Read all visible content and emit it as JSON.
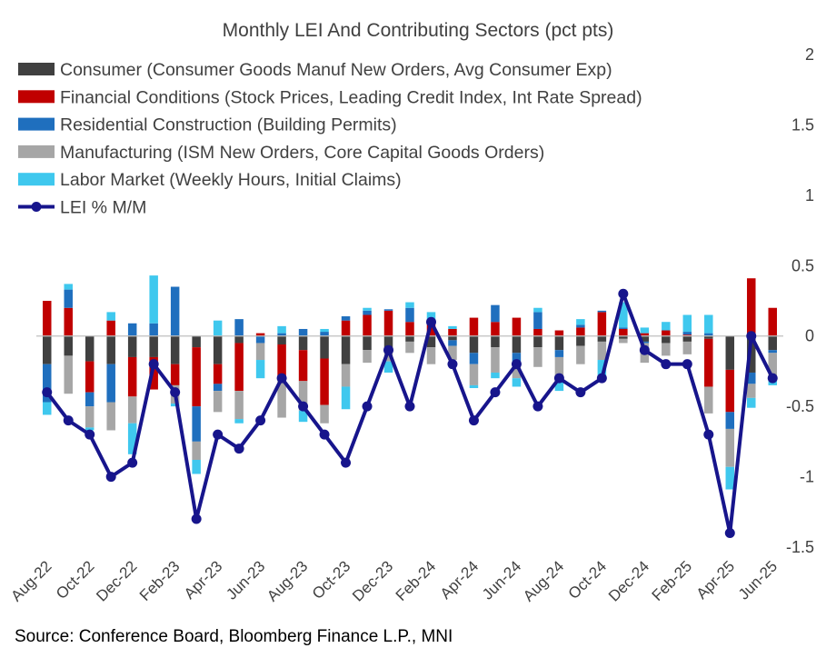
{
  "chart_data": {
    "type": "bar",
    "stacked": true,
    "title": "Monthly LEI And Contributing Sectors (pct pts)",
    "source": "Source: Conference Board, Bloomberg Finance L.P., MNI",
    "ylim": [
      -1.5,
      2
    ],
    "yticks": [
      2,
      1.5,
      1,
      0.5,
      0,
      -0.5,
      -1,
      -1.5
    ],
    "ytick_labels": [
      "2",
      "1.5",
      "1",
      "0.5",
      "0",
      "-0.5",
      "-1",
      "-1.5"
    ],
    "axis_side": "right",
    "legend_position": "top-left",
    "categories": [
      "Aug-22",
      "Sep-22",
      "Oct-22",
      "Nov-22",
      "Dec-22",
      "Jan-23",
      "Feb-23",
      "Mar-23",
      "Apr-23",
      "May-23",
      "Jun-23",
      "Jul-23",
      "Aug-23",
      "Sep-23",
      "Oct-23",
      "Nov-23",
      "Dec-23",
      "Jan-24",
      "Feb-24",
      "Mar-24",
      "Apr-24",
      "May-24",
      "Jun-24",
      "Jul-24",
      "Aug-24",
      "Sep-24",
      "Oct-24",
      "Nov-24",
      "Dec-24",
      "Jan-25",
      "Feb-25",
      "Mar-25",
      "Apr-25",
      "May-25",
      "Jun-25"
    ],
    "xtick_labels": [
      "Aug-22",
      "Oct-22",
      "Dec-22",
      "Feb-23",
      "Apr-23",
      "Jun-23",
      "Aug-23",
      "Oct-23",
      "Dec-23",
      "Feb-24",
      "Apr-24",
      "Jun-24",
      "Aug-24",
      "Oct-24",
      "Dec-24",
      "Feb-25",
      "Apr-25",
      "Jun-25"
    ],
    "series": [
      {
        "name": "Consumer (Consumer Goods Manuf New Orders, Avg Consumer Exp)",
        "color": "#404040",
        "values": [
          -0.2,
          -0.14,
          -0.18,
          -0.2,
          -0.15,
          -0.15,
          -0.2,
          -0.08,
          -0.2,
          -0.05,
          0,
          -0.06,
          -0.1,
          -0.16,
          -0.2,
          -0.1,
          -0.09,
          -0.04,
          -0.08,
          -0.03,
          -0.12,
          -0.08,
          -0.12,
          -0.08,
          -0.1,
          -0.07,
          -0.04,
          -0.02,
          -0.04,
          -0.05,
          -0.04,
          -0.02,
          -0.24,
          -0.26,
          -0.1
        ]
      },
      {
        "name": "Financial Conditions (Stock Prices, Leading Credit Index, Int Rate Spread)",
        "color": "#c00000",
        "values": [
          0.25,
          0.2,
          -0.22,
          0.11,
          -0.28,
          -0.23,
          -0.15,
          -0.42,
          -0.14,
          -0.34,
          0.02,
          -0.24,
          -0.22,
          -0.33,
          0.11,
          0.15,
          0.18,
          0.1,
          0.11,
          0.05,
          0.13,
          0.1,
          0.13,
          0.05,
          0.04,
          0.06,
          0.17,
          0.05,
          0.02,
          0.04,
          0.01,
          -0.34,
          -0.3,
          0.41,
          0.2
        ]
      },
      {
        "name": "Residential Construction (Building Permits)",
        "color": "#1f6fbe",
        "values": [
          -0.27,
          0.13,
          -0.1,
          -0.27,
          0.09,
          0.09,
          0.35,
          -0.25,
          -0.05,
          0.12,
          -0.05,
          0.02,
          0.05,
          0.03,
          0.03,
          0.03,
          0.01,
          0.1,
          0.01,
          -0.04,
          -0.08,
          0.12,
          -0.08,
          0.12,
          -0.05,
          0.02,
          0.01,
          0.01,
          -0.01,
          0,
          0.02,
          0.02,
          -0.12,
          -0.08,
          -0.02
        ]
      },
      {
        "name": "Manufacturing (ISM New Orders, Core Capital Goods Orders)",
        "color": "#a6a6a6",
        "values": [
          0,
          -0.27,
          -0.15,
          -0.2,
          -0.19,
          0,
          -0.13,
          -0.13,
          -0.15,
          -0.2,
          -0.12,
          -0.28,
          -0.21,
          -0.13,
          -0.16,
          -0.09,
          -0.09,
          -0.08,
          -0.12,
          -0.1,
          -0.15,
          -0.18,
          -0.1,
          -0.14,
          -0.15,
          -0.13,
          -0.13,
          -0.03,
          -0.14,
          -0.09,
          -0.09,
          -0.19,
          -0.27,
          -0.1,
          -0.2
        ]
      },
      {
        "name": "Labor Market (Weekly Hours, Initial Claims)",
        "color": "#3fc8ee",
        "values": [
          -0.09,
          0.04,
          -0.02,
          0.06,
          -0.22,
          0.34,
          -0.02,
          -0.1,
          0.11,
          -0.03,
          -0.13,
          0.05,
          -0.08,
          0.02,
          -0.16,
          0.02,
          -0.08,
          0.04,
          0.05,
          0.02,
          -0.02,
          -0.04,
          -0.06,
          0.03,
          -0.09,
          0.04,
          -0.13,
          0.18,
          0.04,
          0.06,
          0.12,
          0.13,
          -0.16,
          -0.07,
          -0.03
        ]
      }
    ],
    "line": {
      "name": "LEI % M/M",
      "color": "#17158c",
      "values": [
        -0.4,
        -0.6,
        -0.7,
        -1.0,
        -0.9,
        -0.2,
        -0.4,
        -1.3,
        -0.7,
        -0.8,
        -0.6,
        -0.3,
        -0.5,
        -0.7,
        -0.9,
        -0.5,
        -0.1,
        -0.5,
        0.1,
        -0.2,
        -0.6,
        -0.4,
        -0.2,
        -0.5,
        -0.3,
        -0.4,
        -0.3,
        0.3,
        -0.1,
        -0.2,
        -0.2,
        -0.7,
        -1.4,
        0.0,
        -0.3
      ]
    }
  }
}
